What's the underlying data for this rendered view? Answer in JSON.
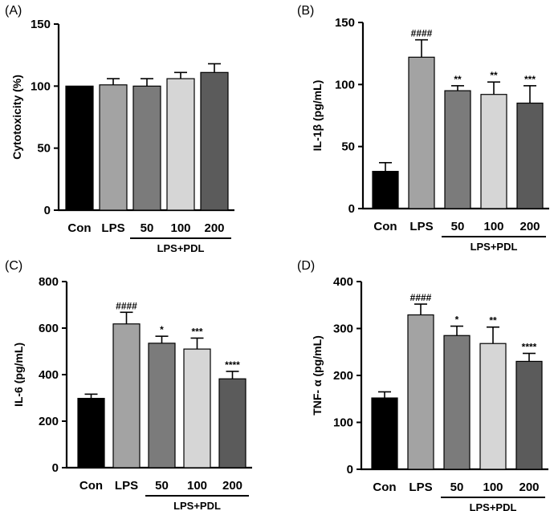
{
  "figure": {
    "group_label": "LPS+PDL"
  },
  "chart_data": [
    {
      "type": "bar",
      "panel": "(A)",
      "ylabel": "Cytotoxicity (%)",
      "ylim": [
        0,
        150
      ],
      "yticks": [
        0,
        50,
        100,
        150
      ],
      "categories": [
        "Con",
        "LPS",
        "50",
        "100",
        "200"
      ],
      "values": [
        100,
        101,
        100,
        106,
        111
      ],
      "errors": [
        0,
        5,
        6,
        5,
        7
      ],
      "significance": [
        "",
        "",
        "",
        "",
        ""
      ],
      "colors": [
        "#000000",
        "#a3a3a3",
        "#7b7b7b",
        "#d6d6d6",
        "#5b5b5b"
      ]
    },
    {
      "type": "bar",
      "panel": "(B)",
      "ylabel": "IL-1β (pg/mL)",
      "ylim": [
        0,
        150
      ],
      "yticks": [
        0,
        50,
        100,
        150
      ],
      "categories": [
        "Con",
        "LPS",
        "50",
        "100",
        "200"
      ],
      "values": [
        30,
        122,
        95,
        92,
        85
      ],
      "errors": [
        7,
        14,
        4,
        10,
        14
      ],
      "significance": [
        "",
        "####",
        "**",
        "**",
        "***"
      ],
      "colors": [
        "#000000",
        "#a3a3a3",
        "#7b7b7b",
        "#d6d6d6",
        "#5b5b5b"
      ]
    },
    {
      "type": "bar",
      "panel": "(C)",
      "ylabel": "IL-6 (pg/mL)",
      "ylim": [
        0,
        800
      ],
      "yticks": [
        0,
        200,
        400,
        600,
        800
      ],
      "categories": [
        "Con",
        "LPS",
        "50",
        "100",
        "200"
      ],
      "values": [
        298,
        618,
        535,
        510,
        382
      ],
      "errors": [
        18,
        50,
        30,
        47,
        32
      ],
      "significance": [
        "",
        "####",
        "*",
        "***",
        "****"
      ],
      "colors": [
        "#000000",
        "#a3a3a3",
        "#7b7b7b",
        "#d6d6d6",
        "#5b5b5b"
      ]
    },
    {
      "type": "bar",
      "panel": "(D)",
      "ylabel": "TNF- α (pg/mL)",
      "ylim": [
        0,
        400
      ],
      "yticks": [
        0,
        100,
        200,
        300,
        400
      ],
      "categories": [
        "Con",
        "LPS",
        "50",
        "100",
        "200"
      ],
      "values": [
        152,
        329,
        285,
        268,
        230
      ],
      "errors": [
        13,
        23,
        20,
        35,
        17
      ],
      "significance": [
        "",
        "####",
        "*",
        "**",
        "****"
      ],
      "colors": [
        "#000000",
        "#a3a3a3",
        "#7b7b7b",
        "#d6d6d6",
        "#5b5b5b"
      ]
    }
  ]
}
